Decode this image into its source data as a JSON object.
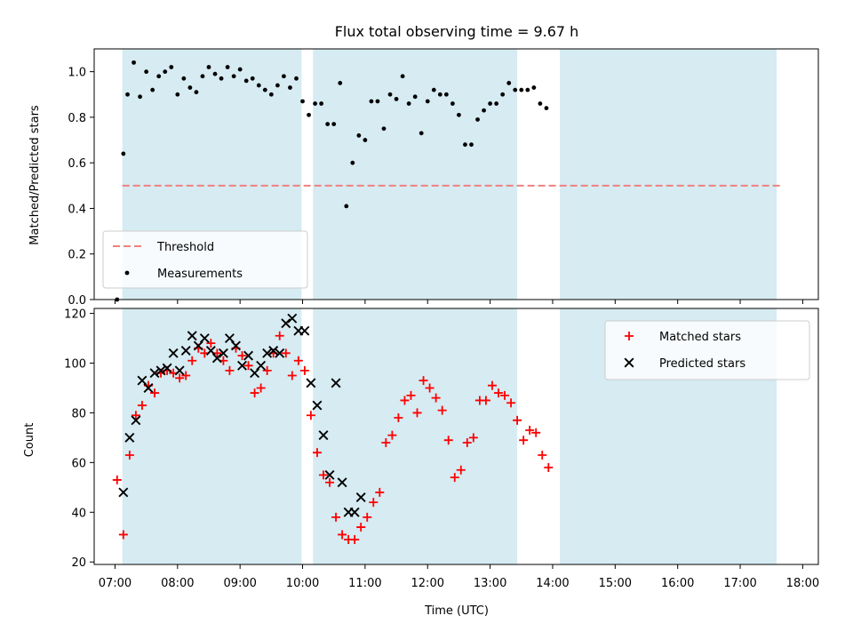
{
  "chart_data": [
    {
      "type": "scatter",
      "title": "Flux total observing time = 9.67 h",
      "xlabel": "",
      "ylabel": "Matched/Predicted stars",
      "xlim": [
        "06:40",
        "18:15"
      ],
      "ylim": [
        0,
        1.1
      ],
      "yticks": [
        "0.0",
        "0.2",
        "0.4",
        "0.6",
        "0.8",
        "1.0"
      ],
      "yticks_values": [
        0,
        0.2,
        0.4,
        0.6,
        0.8,
        1.0
      ],
      "grid": false,
      "legend": "lower-left",
      "shaded_windows": [
        [
          "07:07",
          "09:59"
        ],
        [
          "10:10",
          "13:26"
        ],
        [
          "14:07",
          "17:35"
        ]
      ],
      "threshold": {
        "name": "Threshold",
        "value": 0.5,
        "x_range": [
          "07:07",
          "17:40"
        ],
        "color": "#f08080"
      },
      "series": [
        {
          "name": "Measurements",
          "color": "#000000",
          "marker": "dot",
          "points": [
            [
              "07:02",
              0.0
            ],
            [
              "07:08",
              0.64
            ],
            [
              "07:12",
              0.9
            ],
            [
              "07:18",
              1.04
            ],
            [
              "07:24",
              0.89
            ],
            [
              "07:30",
              1.0
            ],
            [
              "07:36",
              0.92
            ],
            [
              "07:42",
              0.98
            ],
            [
              "07:48",
              1.0
            ],
            [
              "07:54",
              1.02
            ],
            [
              "08:00",
              0.9
            ],
            [
              "08:06",
              0.97
            ],
            [
              "08:12",
              0.93
            ],
            [
              "08:18",
              0.91
            ],
            [
              "08:24",
              0.98
            ],
            [
              "08:30",
              1.02
            ],
            [
              "08:36",
              0.99
            ],
            [
              "08:42",
              0.97
            ],
            [
              "08:48",
              1.02
            ],
            [
              "08:54",
              0.98
            ],
            [
              "09:00",
              1.01
            ],
            [
              "09:06",
              0.96
            ],
            [
              "09:12",
              0.97
            ],
            [
              "09:18",
              0.94
            ],
            [
              "09:24",
              0.92
            ],
            [
              "09:30",
              0.9
            ],
            [
              "09:36",
              0.94
            ],
            [
              "09:42",
              0.98
            ],
            [
              "09:48",
              0.93
            ],
            [
              "09:54",
              0.97
            ],
            [
              "10:00",
              0.87
            ],
            [
              "10:06",
              0.81
            ],
            [
              "10:12",
              0.86
            ],
            [
              "10:18",
              0.86
            ],
            [
              "10:24",
              0.77
            ],
            [
              "10:30",
              0.77
            ],
            [
              "10:36",
              0.95
            ],
            [
              "10:42",
              0.41
            ],
            [
              "10:48",
              0.6
            ],
            [
              "10:54",
              0.72
            ],
            [
              "11:00",
              0.7
            ],
            [
              "11:06",
              0.87
            ],
            [
              "11:12",
              0.87
            ],
            [
              "11:18",
              0.75
            ],
            [
              "11:24",
              0.9
            ],
            [
              "11:30",
              0.88
            ],
            [
              "11:36",
              0.98
            ],
            [
              "11:42",
              0.86
            ],
            [
              "11:48",
              0.89
            ],
            [
              "11:54",
              0.73
            ],
            [
              "12:00",
              0.87
            ],
            [
              "12:06",
              0.92
            ],
            [
              "12:12",
              0.9
            ],
            [
              "12:18",
              0.9
            ],
            [
              "12:24",
              0.86
            ],
            [
              "12:30",
              0.81
            ],
            [
              "12:36",
              0.68
            ],
            [
              "12:42",
              0.68
            ],
            [
              "12:48",
              0.79
            ],
            [
              "12:54",
              0.83
            ],
            [
              "13:00",
              0.86
            ],
            [
              "13:06",
              0.86
            ],
            [
              "13:12",
              0.9
            ],
            [
              "13:18",
              0.95
            ],
            [
              "13:24",
              0.92
            ],
            [
              "13:30",
              0.92
            ],
            [
              "13:36",
              0.92
            ],
            [
              "13:42",
              0.93
            ],
            [
              "13:48",
              0.86
            ],
            [
              "13:54",
              0.84
            ]
          ]
        }
      ]
    },
    {
      "type": "scatter",
      "title": "",
      "xlabel": "Time (UTC)",
      "ylabel": "Count",
      "xlim": [
        "06:40",
        "18:15"
      ],
      "ylim": [
        19,
        122
      ],
      "xticks": [
        "07:00",
        "08:00",
        "09:00",
        "10:00",
        "11:00",
        "12:00",
        "13:00",
        "14:00",
        "15:00",
        "16:00",
        "17:00",
        "18:00"
      ],
      "yticks": [
        "20",
        "40",
        "60",
        "80",
        "100",
        "120"
      ],
      "yticks_values": [
        20,
        40,
        60,
        80,
        100,
        120
      ],
      "grid": false,
      "legend": "top-right",
      "shaded_windows": [
        [
          "07:07",
          "09:59"
        ],
        [
          "10:10",
          "13:26"
        ],
        [
          "14:07",
          "17:35"
        ]
      ],
      "series": [
        {
          "name": "Matched stars",
          "color": "#ff0000",
          "marker": "plus",
          "points": [
            [
              "07:02",
              53
            ],
            [
              "07:08",
              31
            ],
            [
              "07:14",
              63
            ],
            [
              "07:20",
              79
            ],
            [
              "07:26",
              83
            ],
            [
              "07:32",
              91
            ],
            [
              "07:38",
              88
            ],
            [
              "07:44",
              96
            ],
            [
              "07:50",
              97
            ],
            [
              "07:56",
              96
            ],
            [
              "08:02",
              94
            ],
            [
              "08:08",
              95
            ],
            [
              "08:14",
              101
            ],
            [
              "08:20",
              106
            ],
            [
              "08:26",
              104
            ],
            [
              "08:32",
              108
            ],
            [
              "08:38",
              104
            ],
            [
              "08:44",
              101
            ],
            [
              "08:50",
              97
            ],
            [
              "08:56",
              106
            ],
            [
              "09:02",
              103
            ],
            [
              "09:08",
              99
            ],
            [
              "09:14",
              88
            ],
            [
              "09:20",
              90
            ],
            [
              "09:26",
              97
            ],
            [
              "09:32",
              104
            ],
            [
              "09:38",
              111
            ],
            [
              "09:44",
              104
            ],
            [
              "09:50",
              95
            ],
            [
              "09:56",
              101
            ],
            [
              "10:02",
              97
            ],
            [
              "10:08",
              79
            ],
            [
              "10:14",
              64
            ],
            [
              "10:20",
              55
            ],
            [
              "10:26",
              52
            ],
            [
              "10:32",
              38
            ],
            [
              "10:38",
              31
            ],
            [
              "10:44",
              29
            ],
            [
              "10:50",
              29
            ],
            [
              "10:56",
              34
            ],
            [
              "11:02",
              38
            ],
            [
              "11:08",
              44
            ],
            [
              "11:14",
              48
            ],
            [
              "11:20",
              68
            ],
            [
              "11:26",
              71
            ],
            [
              "11:32",
              78
            ],
            [
              "11:38",
              85
            ],
            [
              "11:44",
              87
            ],
            [
              "11:50",
              80
            ],
            [
              "11:56",
              93
            ],
            [
              "12:02",
              90
            ],
            [
              "12:08",
              86
            ],
            [
              "12:14",
              81
            ],
            [
              "12:20",
              69
            ],
            [
              "12:26",
              54
            ],
            [
              "12:32",
              57
            ],
            [
              "12:38",
              68
            ],
            [
              "12:44",
              70
            ],
            [
              "12:50",
              85
            ],
            [
              "12:56",
              85
            ],
            [
              "13:02",
              91
            ],
            [
              "13:08",
              88
            ],
            [
              "13:14",
              87
            ],
            [
              "13:20",
              84
            ],
            [
              "13:26",
              77
            ],
            [
              "13:32",
              69
            ],
            [
              "13:38",
              73
            ],
            [
              "13:44",
              72
            ],
            [
              "13:50",
              63
            ],
            [
              "13:56",
              58
            ]
          ]
        },
        {
          "name": "Predicted stars",
          "color": "#000000",
          "marker": "x",
          "points": [
            [
              "07:08",
              48
            ],
            [
              "07:14",
              70
            ],
            [
              "07:20",
              77
            ],
            [
              "07:26",
              93
            ],
            [
              "07:32",
              90
            ],
            [
              "07:38",
              96
            ],
            [
              "07:44",
              97
            ],
            [
              "07:50",
              98
            ],
            [
              "07:56",
              104
            ],
            [
              "08:02",
              97
            ],
            [
              "08:08",
              105
            ],
            [
              "08:14",
              111
            ],
            [
              "08:20",
              107
            ],
            [
              "08:26",
              110
            ],
            [
              "08:32",
              105
            ],
            [
              "08:38",
              102
            ],
            [
              "08:44",
              104
            ],
            [
              "08:50",
              110
            ],
            [
              "08:56",
              107
            ],
            [
              "09:02",
              99
            ],
            [
              "09:08",
              103
            ],
            [
              "09:14",
              96
            ],
            [
              "09:20",
              99
            ],
            [
              "09:26",
              104
            ],
            [
              "09:32",
              105
            ],
            [
              "09:38",
              104
            ],
            [
              "09:44",
              116
            ],
            [
              "09:50",
              118
            ],
            [
              "09:56",
              113
            ],
            [
              "10:02",
              113
            ],
            [
              "10:08",
              92
            ],
            [
              "10:14",
              83
            ],
            [
              "10:20",
              71
            ],
            [
              "10:26",
              55
            ],
            [
              "10:32",
              92
            ],
            [
              "10:38",
              52
            ],
            [
              "10:44",
              40
            ],
            [
              "10:50",
              40
            ],
            [
              "10:56",
              46
            ]
          ]
        }
      ]
    }
  ]
}
